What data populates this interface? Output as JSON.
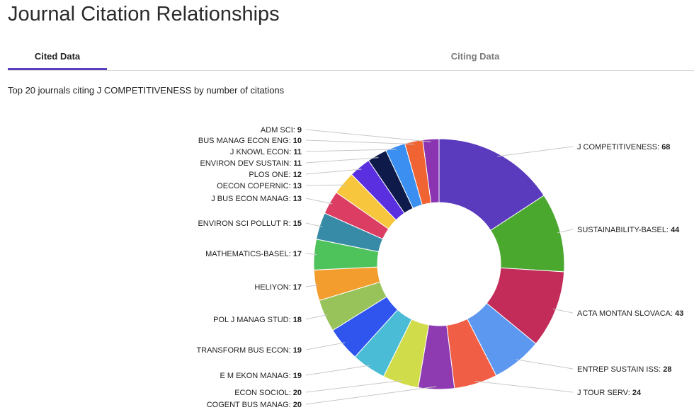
{
  "page": {
    "title": "Journal Citation Relationships"
  },
  "tabs": [
    {
      "label": "Cited Data",
      "active": true
    },
    {
      "label": "Citing Data",
      "active": false
    }
  ],
  "chart_data": {
    "type": "pie",
    "title": "Top 20 journals citing J COMPETITIVENESS by number of citations",
    "donut": true,
    "slices": [
      {
        "label": "J COMPETITIVENESS",
        "value": 68,
        "color": "#5a3bbd"
      },
      {
        "label": "SUSTAINABILITY-BASEL",
        "value": 44,
        "color": "#4ba82e"
      },
      {
        "label": "ACTA MONTAN SLOVACA",
        "value": 43,
        "color": "#c32c59"
      },
      {
        "label": "ENTREP SUSTAIN ISS",
        "value": 28,
        "color": "#5c97f0"
      },
      {
        "label": "J TOUR SERV",
        "value": 24,
        "color": "#f05e46"
      },
      {
        "label": "COGENT BUS MANAG",
        "value": 20,
        "color": "#8e3bb2"
      },
      {
        "label": "ECON SOCIOL",
        "value": 20,
        "color": "#d1dc4a"
      },
      {
        "label": "E M EKON MANAG",
        "value": 19,
        "color": "#4bbcd6"
      },
      {
        "label": "TRANSFORM BUS ECON",
        "value": 19,
        "color": "#2f55ee"
      },
      {
        "label": "POL J MANAG STUD",
        "value": 18,
        "color": "#98c25a"
      },
      {
        "label": "HELIYON",
        "value": 17,
        "color": "#f39d2f"
      },
      {
        "label": "MATHEMATICS-BASEL",
        "value": 17,
        "color": "#4fc35b"
      },
      {
        "label": "ENVIRON SCI POLLUT R",
        "value": 15,
        "color": "#378ba6"
      },
      {
        "label": "J BUS ECON MANAG",
        "value": 13,
        "color": "#dc3e63"
      },
      {
        "label": "OECON COPERNIC",
        "value": 13,
        "color": "#f8c63c"
      },
      {
        "label": "PLOS ONE",
        "value": 12,
        "color": "#5a2fe0"
      },
      {
        "label": "ENVIRON DEV SUSTAIN",
        "value": 11,
        "color": "#0d1a4a"
      },
      {
        "label": "J KNOWL ECON",
        "value": 11,
        "color": "#3a8ff0"
      },
      {
        "label": "BUS MANAG ECON ENG",
        "value": 10,
        "color": "#f06434"
      },
      {
        "label": "ADM SCI",
        "value": 9,
        "color": "#8a34b2"
      }
    ]
  }
}
